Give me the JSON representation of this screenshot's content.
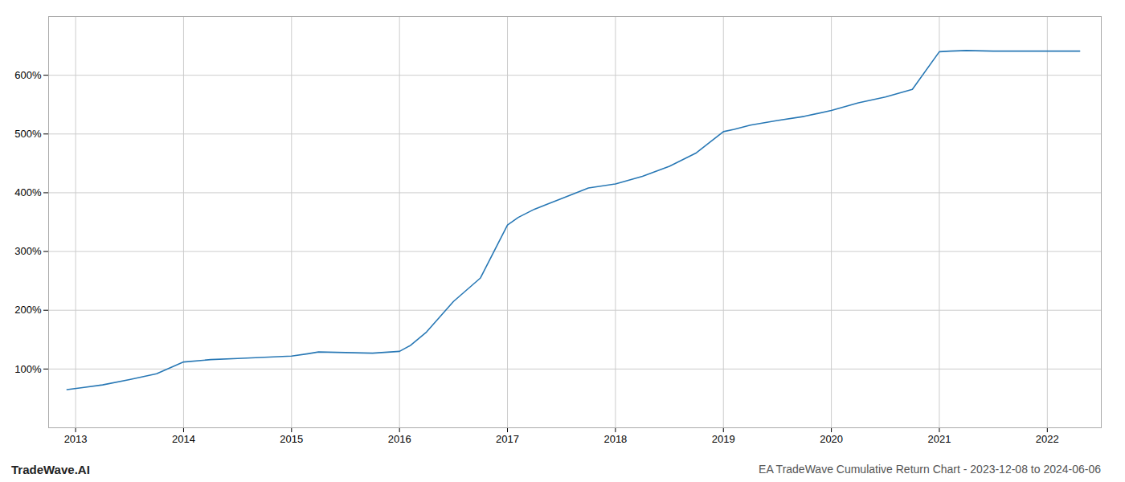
{
  "chart_data": {
    "type": "line",
    "title": "EA TradeWave Cumulative Return Chart - 2023-12-08 to 2024-06-06",
    "annotations": [
      "TradeWave.AI"
    ],
    "color": "#2878b5",
    "x": [
      2012.92,
      2013.05,
      2013.25,
      2013.5,
      2013.75,
      2014.0,
      2014.25,
      2014.5,
      2014.75,
      2015.0,
      2015.15,
      2015.25,
      2015.5,
      2015.75,
      2016.0,
      2016.1,
      2016.25,
      2016.5,
      2016.75,
      2017.0,
      2017.1,
      2017.25,
      2017.5,
      2017.75,
      2018.0,
      2018.25,
      2018.5,
      2018.75,
      2019.0,
      2019.1,
      2019.25,
      2019.5,
      2019.75,
      2020.0,
      2020.25,
      2020.5,
      2020.75,
      2021.0,
      2021.1,
      2021.25,
      2021.5,
      2021.75,
      2022.0,
      2022.3
    ],
    "values": [
      65,
      68,
      73,
      82,
      92,
      112,
      116,
      118,
      120,
      122,
      126,
      129,
      128,
      127,
      130,
      140,
      163,
      215,
      255,
      345,
      358,
      372,
      390,
      408,
      415,
      428,
      445,
      468,
      504,
      508,
      515,
      523,
      530,
      540,
      553,
      563,
      576,
      640,
      641,
      642,
      641,
      641,
      641,
      641
    ],
    "xlim": [
      2012.75,
      2022.5
    ],
    "xticks": [
      2013,
      2014,
      2015,
      2016,
      2017,
      2018,
      2019,
      2020,
      2021,
      2022
    ],
    "ylim": [
      0,
      700
    ],
    "yticks": [
      {
        "value": 100,
        "label": "100%"
      },
      {
        "value": 200,
        "label": "200%"
      },
      {
        "value": 300,
        "label": "300%"
      },
      {
        "value": 400,
        "label": "400%"
      },
      {
        "value": 500,
        "label": "500%"
      },
      {
        "value": 600,
        "label": "600%"
      }
    ],
    "grid": true
  }
}
